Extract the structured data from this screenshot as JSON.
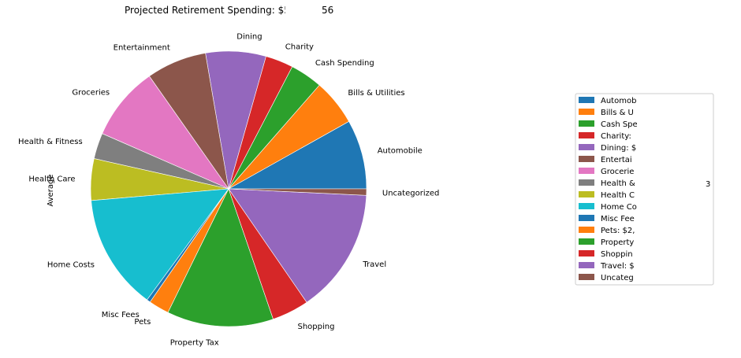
{
  "chart_data": {
    "type": "pie",
    "title": "Projected Retirement Spending: $5",
    "title_hidden_tail": "56",
    "ylabel": "Average",
    "start_angle": "counterclockwise from 3 o'clock",
    "legend_placement": "right",
    "slices": [
      {
        "label": "Automobile",
        "value": 7.5,
        "color": "#1f77b4",
        "legend": "Automob"
      },
      {
        "label": "Bills & Utilities",
        "value": 5.0,
        "color": "#ff7f0e",
        "legend": "Bills & U"
      },
      {
        "label": "Cash Spending",
        "value": 3.5,
        "color": "#2ca02c",
        "legend": "Cash Spe"
      },
      {
        "label": "Charity",
        "value": 3.0,
        "color": "#d62728",
        "legend": "Charity:"
      },
      {
        "label": "Dining",
        "value": 6.5,
        "color": "#9467bd",
        "legend": "Dining: $"
      },
      {
        "label": "Entertainment",
        "value": 6.5,
        "color": "#8c564b",
        "legend": "Entertai"
      },
      {
        "label": "Groceries",
        "value": 8.0,
        "color": "#e377c2",
        "legend": "Grocerie"
      },
      {
        "label": "Health & Fitness",
        "value": 2.8,
        "color": "#7f7f7f",
        "legend": "Health &",
        "legend_tail": "3"
      },
      {
        "label": "Health Care",
        "value": 4.5,
        "color": "#bcbd22",
        "legend": "Health C"
      },
      {
        "label": "Home Costs",
        "value": 12.5,
        "color": "#17becf",
        "legend": "Home Co"
      },
      {
        "label": "Misc Fees",
        "value": 0.4,
        "color": "#1f77b4",
        "legend": "Misc Fee"
      },
      {
        "label": "Pets",
        "value": 2.2,
        "color": "#ff7f0e",
        "legend": "Pets: $2,"
      },
      {
        "label": "Property Tax",
        "value": 11.5,
        "color": "#2ca02c",
        "legend": "Property"
      },
      {
        "label": "Shopping",
        "value": 4.0,
        "color": "#d62728",
        "legend": "Shoppin"
      },
      {
        "label": "Travel",
        "value": 13.5,
        "color": "#9467bd",
        "legend": "Travel: $"
      },
      {
        "label": "Uncategorized",
        "value": 0.7,
        "color": "#8c564b",
        "legend": "Uncateg"
      }
    ]
  }
}
